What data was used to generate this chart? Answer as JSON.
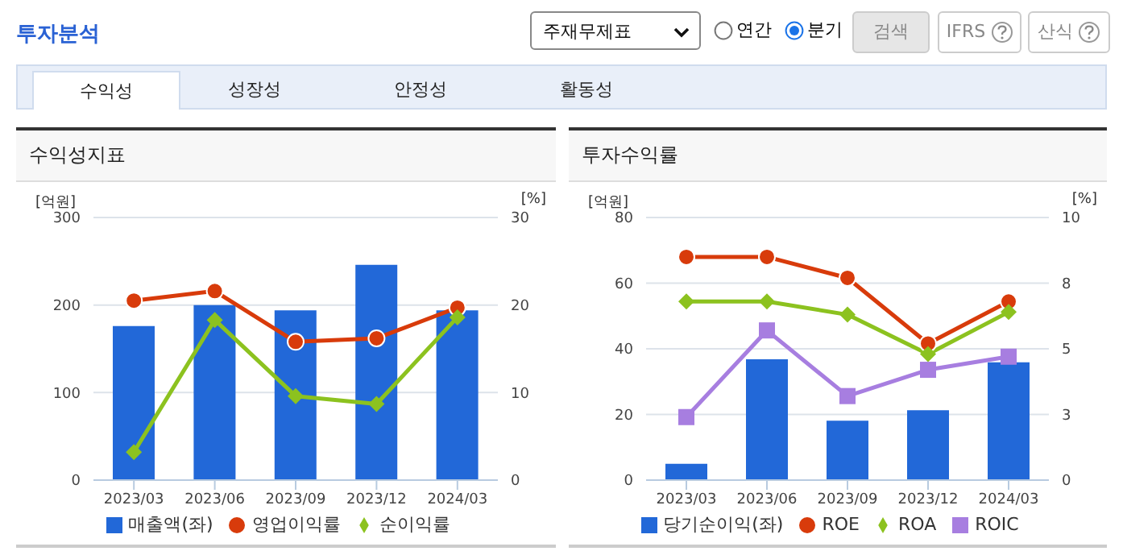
{
  "chart_data": [
    {
      "type": "other",
      "title": "투자분석",
      "annotations": [
        "주재무제표",
        "연간",
        "분기",
        "검색",
        "IFRS",
        "산식",
        "수익성",
        "성장성",
        "안정성",
        "활동성"
      ]
    },
    {
      "type": "bar",
      "title": "수익성지표",
      "ylabel": "[억원]",
      "y2label": "[%]",
      "categories": [
        "2023/03",
        "2023/06",
        "2023/09",
        "2023/12",
        "2024/03"
      ],
      "series": [
        {
          "name": "매출액(좌)",
          "type": "bar",
          "color": "#2268d8",
          "values": [
            176,
            200,
            194,
            246,
            194
          ]
        },
        {
          "name": "영업이익률",
          "type": "line",
          "axis": "y2",
          "marker": "circle",
          "color": "#d83b0b",
          "values": [
            20.5,
            21.6,
            15.8,
            16.2,
            19.7
          ]
        },
        {
          "name": "순이익률",
          "type": "line",
          "axis": "y2",
          "marker": "diamond",
          "color": "#8cc21f",
          "values": [
            3.2,
            18.3,
            9.6,
            8.7,
            18.6
          ]
        }
      ],
      "ylim": [
        0,
        300
      ],
      "yticks": [
        0,
        100,
        200,
        300
      ],
      "y2lim": [
        0,
        30
      ],
      "y2ticks": [
        0,
        10,
        20,
        30
      ],
      "grid": "y",
      "legend": "bottom"
    },
    {
      "type": "bar",
      "title": "투자수익률",
      "ylabel": "[억원]",
      "y2label": "[%]",
      "categories": [
        "2023/03",
        "2023/06",
        "2023/09",
        "2023/12",
        "2024/03"
      ],
      "series": [
        {
          "name": "당기순이익(좌)",
          "type": "bar",
          "color": "#2268d8",
          "values": [
            5.0,
            36.8,
            18.1,
            21.3,
            35.9
          ]
        },
        {
          "name": "ROE",
          "type": "line",
          "axis": "y2",
          "marker": "circle",
          "color": "#d83b0b",
          "values": [
            8.5,
            8.5,
            7.7,
            5.2,
            6.8
          ]
        },
        {
          "name": "ROA",
          "type": "line",
          "axis": "y2",
          "marker": "diamond",
          "color": "#8cc21f",
          "values": [
            6.8,
            6.8,
            6.3,
            4.8,
            6.4
          ]
        },
        {
          "name": "ROIC",
          "type": "line",
          "axis": "y2",
          "marker": "square",
          "color": "#a77ee0",
          "values": [
            2.4,
            5.7,
            3.2,
            4.2,
            4.7
          ]
        }
      ],
      "ylim": [
        0,
        80
      ],
      "yticks": [
        0,
        20,
        40,
        60,
        80
      ],
      "y2lim": [
        0,
        10
      ],
      "y2ticks": [
        0,
        {
          "value": 2.5,
          "label": "3"
        },
        5,
        {
          "value": 7.5,
          "label": "8"
        },
        10
      ],
      "grid": "y",
      "legend": "bottom"
    }
  ]
}
